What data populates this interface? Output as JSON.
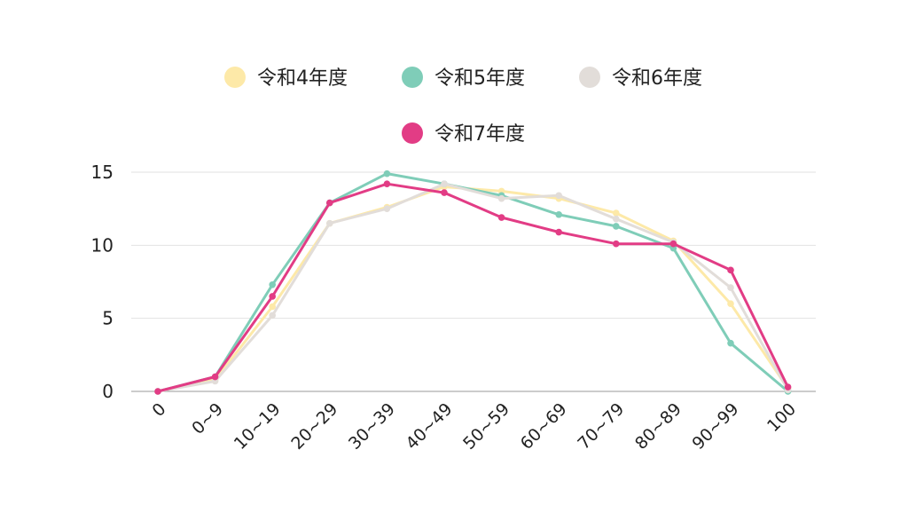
{
  "chart_data": {
    "type": "line",
    "categories": [
      "0",
      "0~9",
      "10~19",
      "20~29",
      "30~39",
      "40~49",
      "50~59",
      "60~69",
      "70~79",
      "80~89",
      "90~99",
      "100"
    ],
    "series": [
      {
        "name": "令和4年度",
        "color": "#fde9a8",
        "values": [
          0,
          0.8,
          5.8,
          11.5,
          12.6,
          14.0,
          13.7,
          13.2,
          12.2,
          10.3,
          6.0,
          0.2
        ]
      },
      {
        "name": "令和5年度",
        "color": "#7fcdb8",
        "values": [
          0,
          1.0,
          7.3,
          12.9,
          14.9,
          14.2,
          13.4,
          12.1,
          11.3,
          9.8,
          3.3,
          0.0
        ]
      },
      {
        "name": "令和6年度",
        "color": "#e2ddd9",
        "values": [
          0,
          0.7,
          5.2,
          11.5,
          12.5,
          14.2,
          13.2,
          13.4,
          11.8,
          10.2,
          7.1,
          0.1
        ]
      },
      {
        "name": "令和7年度",
        "color": "#e23c85",
        "values": [
          0,
          1.0,
          6.5,
          12.9,
          14.2,
          13.6,
          11.9,
          10.9,
          10.1,
          10.1,
          8.3,
          0.3
        ]
      }
    ],
    "yticks": [
      0,
      5,
      10,
      15
    ],
    "ylim": [
      0,
      15
    ],
    "grid": true,
    "legend_position": "top"
  }
}
